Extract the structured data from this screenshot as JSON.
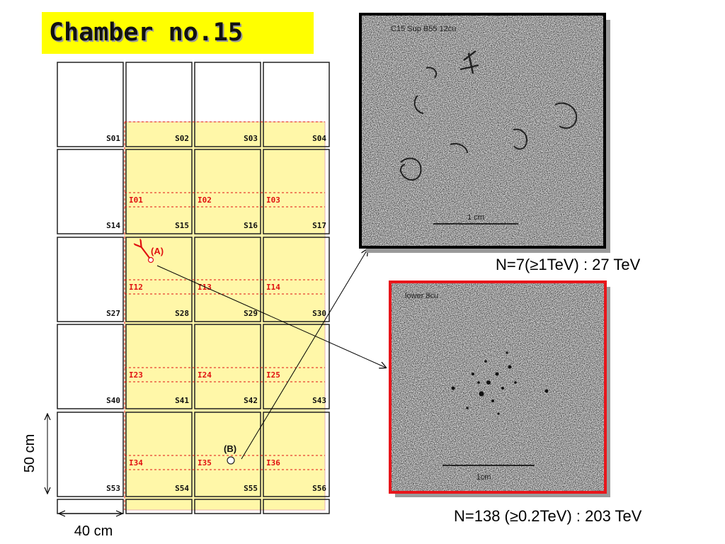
{
  "title": "Chamber no.15",
  "grid": {
    "s_cells": [
      [
        "S01",
        "S02",
        "S03",
        "S04"
      ],
      [
        "S14",
        "S15",
        "S16",
        "S17"
      ],
      [
        "S27",
        "S28",
        "S29",
        "S30"
      ],
      [
        "S40",
        "S41",
        "S42",
        "S43"
      ],
      [
        "S53",
        "S54",
        "S55",
        "S56"
      ]
    ],
    "i_cells": [
      [
        "I01",
        "I02",
        "I03"
      ],
      [
        "I12",
        "I13",
        "I14"
      ],
      [
        "I23",
        "I24",
        "I25"
      ],
      [
        "I34",
        "I35",
        "I36"
      ]
    ],
    "marker_a": "(A)",
    "marker_b": "(B)",
    "height_dim": "50 cm",
    "width_dim": "40 cm"
  },
  "photos": {
    "top": {
      "label": "C15 Sup B55 12cu",
      "scale": "1 cm",
      "caption": "N=7(≥1TeV) : 27 TeV",
      "frame_color": "#000000"
    },
    "bottom": {
      "label": "lower 8cu",
      "scale": "1cm",
      "caption": "N=138 (≥0.2TeV) : 203 TeV",
      "frame_color": "#e8161b"
    }
  },
  "colors": {
    "region": "#fff7a8",
    "accent": "#e01010",
    "title_bg": "#ffff00"
  }
}
